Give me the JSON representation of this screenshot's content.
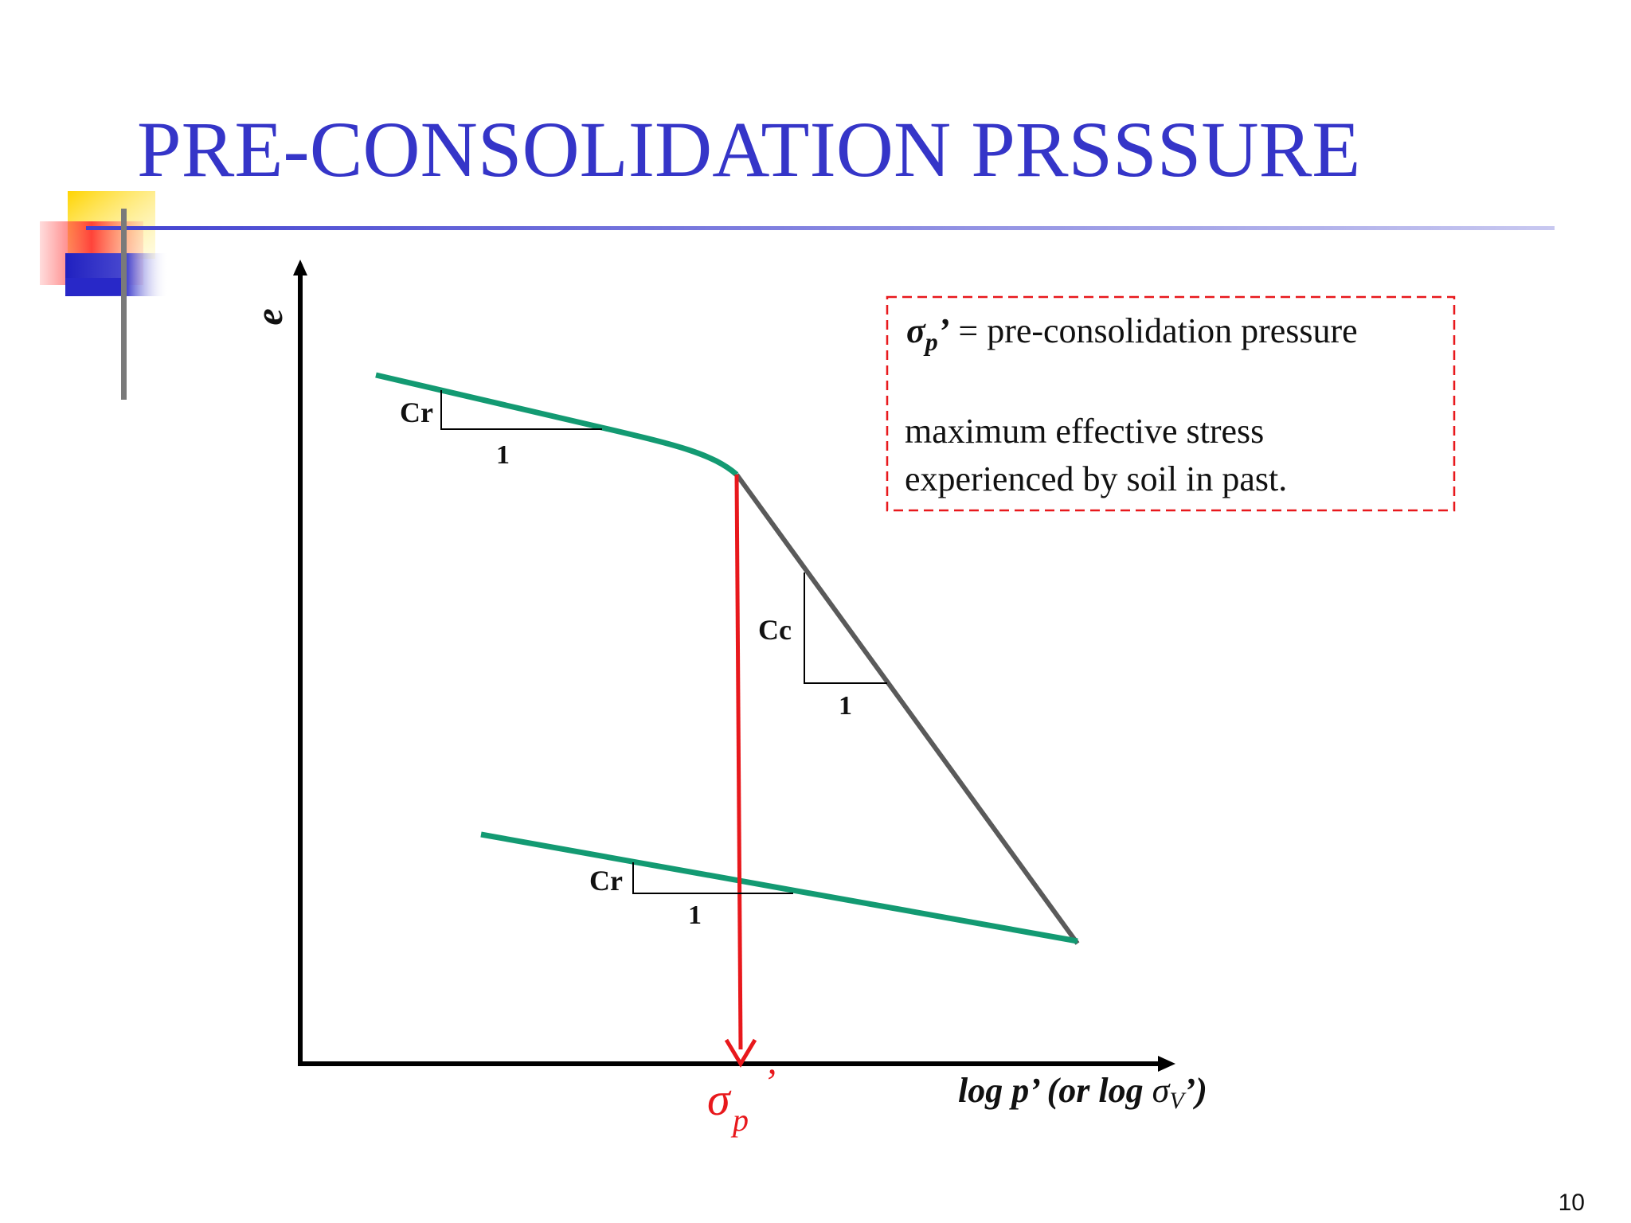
{
  "slide": {
    "title": "PRE-CONSOLIDATION PRSSSURE",
    "page_number": "10"
  },
  "colors": {
    "title": "#3535c8",
    "recompression_line": "#139a72",
    "virgin_line": "#5a5a5a",
    "preconsolidation_arrow": "#e8181c",
    "legend_border": "#e8181c"
  },
  "diagram": {
    "y_axis_label": "e",
    "x_axis_label_prefix": "log p’ (or log ",
    "x_axis_label_sigma": "σ",
    "x_axis_label_sub": "V",
    "x_axis_label_suffix": "’)",
    "marker_sigma": "σ",
    "marker_sub": "p",
    "marker_prime": "’",
    "slope_upper_cr": "Cr",
    "slope_upper_run": "1",
    "slope_cc": "Cc",
    "slope_cc_run": "1",
    "slope_lower_cr": "Cr",
    "slope_lower_run": "1"
  },
  "legend": {
    "symbol_sigma": "σ",
    "symbol_sub": "p",
    "symbol_prime": "’",
    "definition": " = pre-consolidation pressure",
    "line1": "maximum effective stress",
    "line2": "experienced by soil in past."
  }
}
